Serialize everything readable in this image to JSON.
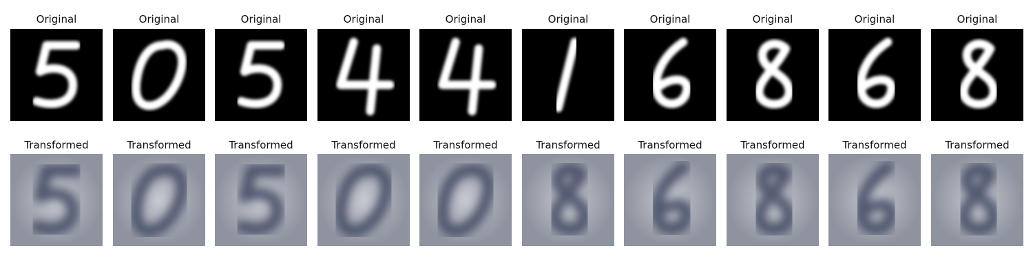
{
  "top_row": {
    "panels": [
      {
        "title": "Original",
        "digit": "5"
      },
      {
        "title": "Original",
        "digit": "0"
      },
      {
        "title": "Original",
        "digit": "5"
      },
      {
        "title": "Original",
        "digit": "4"
      },
      {
        "title": "Original",
        "digit": "4"
      },
      {
        "title": "Original",
        "digit": "1"
      },
      {
        "title": "Original",
        "digit": "6"
      },
      {
        "title": "Original",
        "digit": "8"
      },
      {
        "title": "Original",
        "digit": "6"
      },
      {
        "title": "Original",
        "digit": "8"
      }
    ]
  },
  "bottom_row": {
    "panels": [
      {
        "title": "Transformed",
        "digit": "5"
      },
      {
        "title": "Transformed",
        "digit": "0"
      },
      {
        "title": "Transformed",
        "digit": "5"
      },
      {
        "title": "Transformed",
        "digit": "0"
      },
      {
        "title": "Transformed",
        "digit": "0"
      },
      {
        "title": "Transformed",
        "digit": "8"
      },
      {
        "title": "Transformed",
        "digit": "6"
      },
      {
        "title": "Transformed",
        "digit": "8"
      },
      {
        "title": "Transformed",
        "digit": "6"
      },
      {
        "title": "Transformed",
        "digit": "8"
      }
    ]
  },
  "colors": {
    "original_background": "#000000",
    "original_stroke": "#ffffff",
    "transformed_background": "#b9bcc4",
    "transformed_stroke": "#39405c"
  }
}
